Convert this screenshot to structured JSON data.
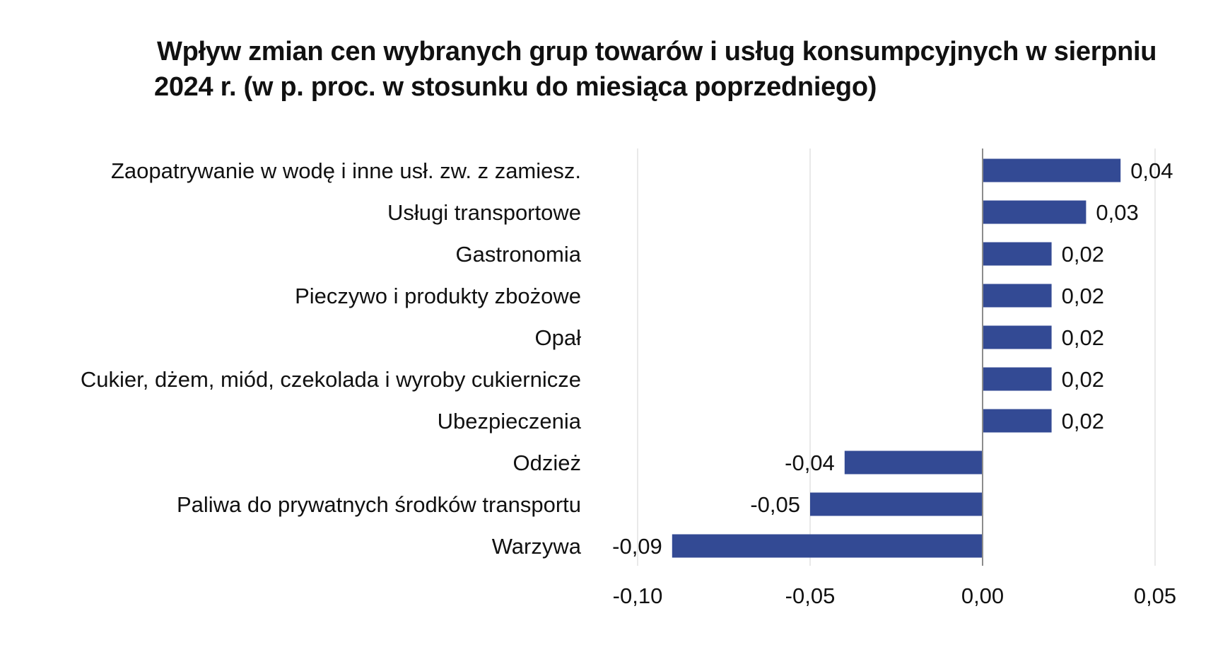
{
  "chart_data": {
    "type": "bar",
    "orientation": "horizontal",
    "title_line1": "Wpływ zmian cen wybranych grup towarów i usług konsumpcyjnych w sierpniu",
    "title_line2": "2024 r. (w p. proc. w stosunku do miesiąca poprzedniego)",
    "categories": [
      "Zaopatrywanie w wodę i inne usł. zw. z zamiesz.",
      "Usługi transportowe",
      "Gastronomia",
      "Pieczywo i produkty zbożowe",
      "Opał",
      "Cukier, dżem, miód, czekolada i wyroby cukiernicze",
      "Ubezpieczenia",
      "Odzież",
      "Paliwa do prywatnych środków transportu",
      "Warzywa"
    ],
    "values": [
      0.04,
      0.03,
      0.02,
      0.02,
      0.02,
      0.02,
      0.02,
      -0.04,
      -0.05,
      -0.09
    ],
    "value_labels": [
      "0,04",
      "0,03",
      "0,02",
      "0,02",
      "0,02",
      "0,02",
      "0,02",
      "-0,04",
      "-0,05",
      "-0,09"
    ],
    "xlim": [
      -0.1,
      0.05
    ],
    "xticks": [
      -0.1,
      -0.05,
      0.0,
      0.05
    ],
    "xtick_labels": [
      "-0,10",
      "-0,05",
      "0,00",
      "0,05"
    ],
    "grid": true,
    "legend": "none",
    "bar_color": "#334a94",
    "grid_color": "#e2e2e2",
    "axis_color": "#8c8c8c"
  }
}
